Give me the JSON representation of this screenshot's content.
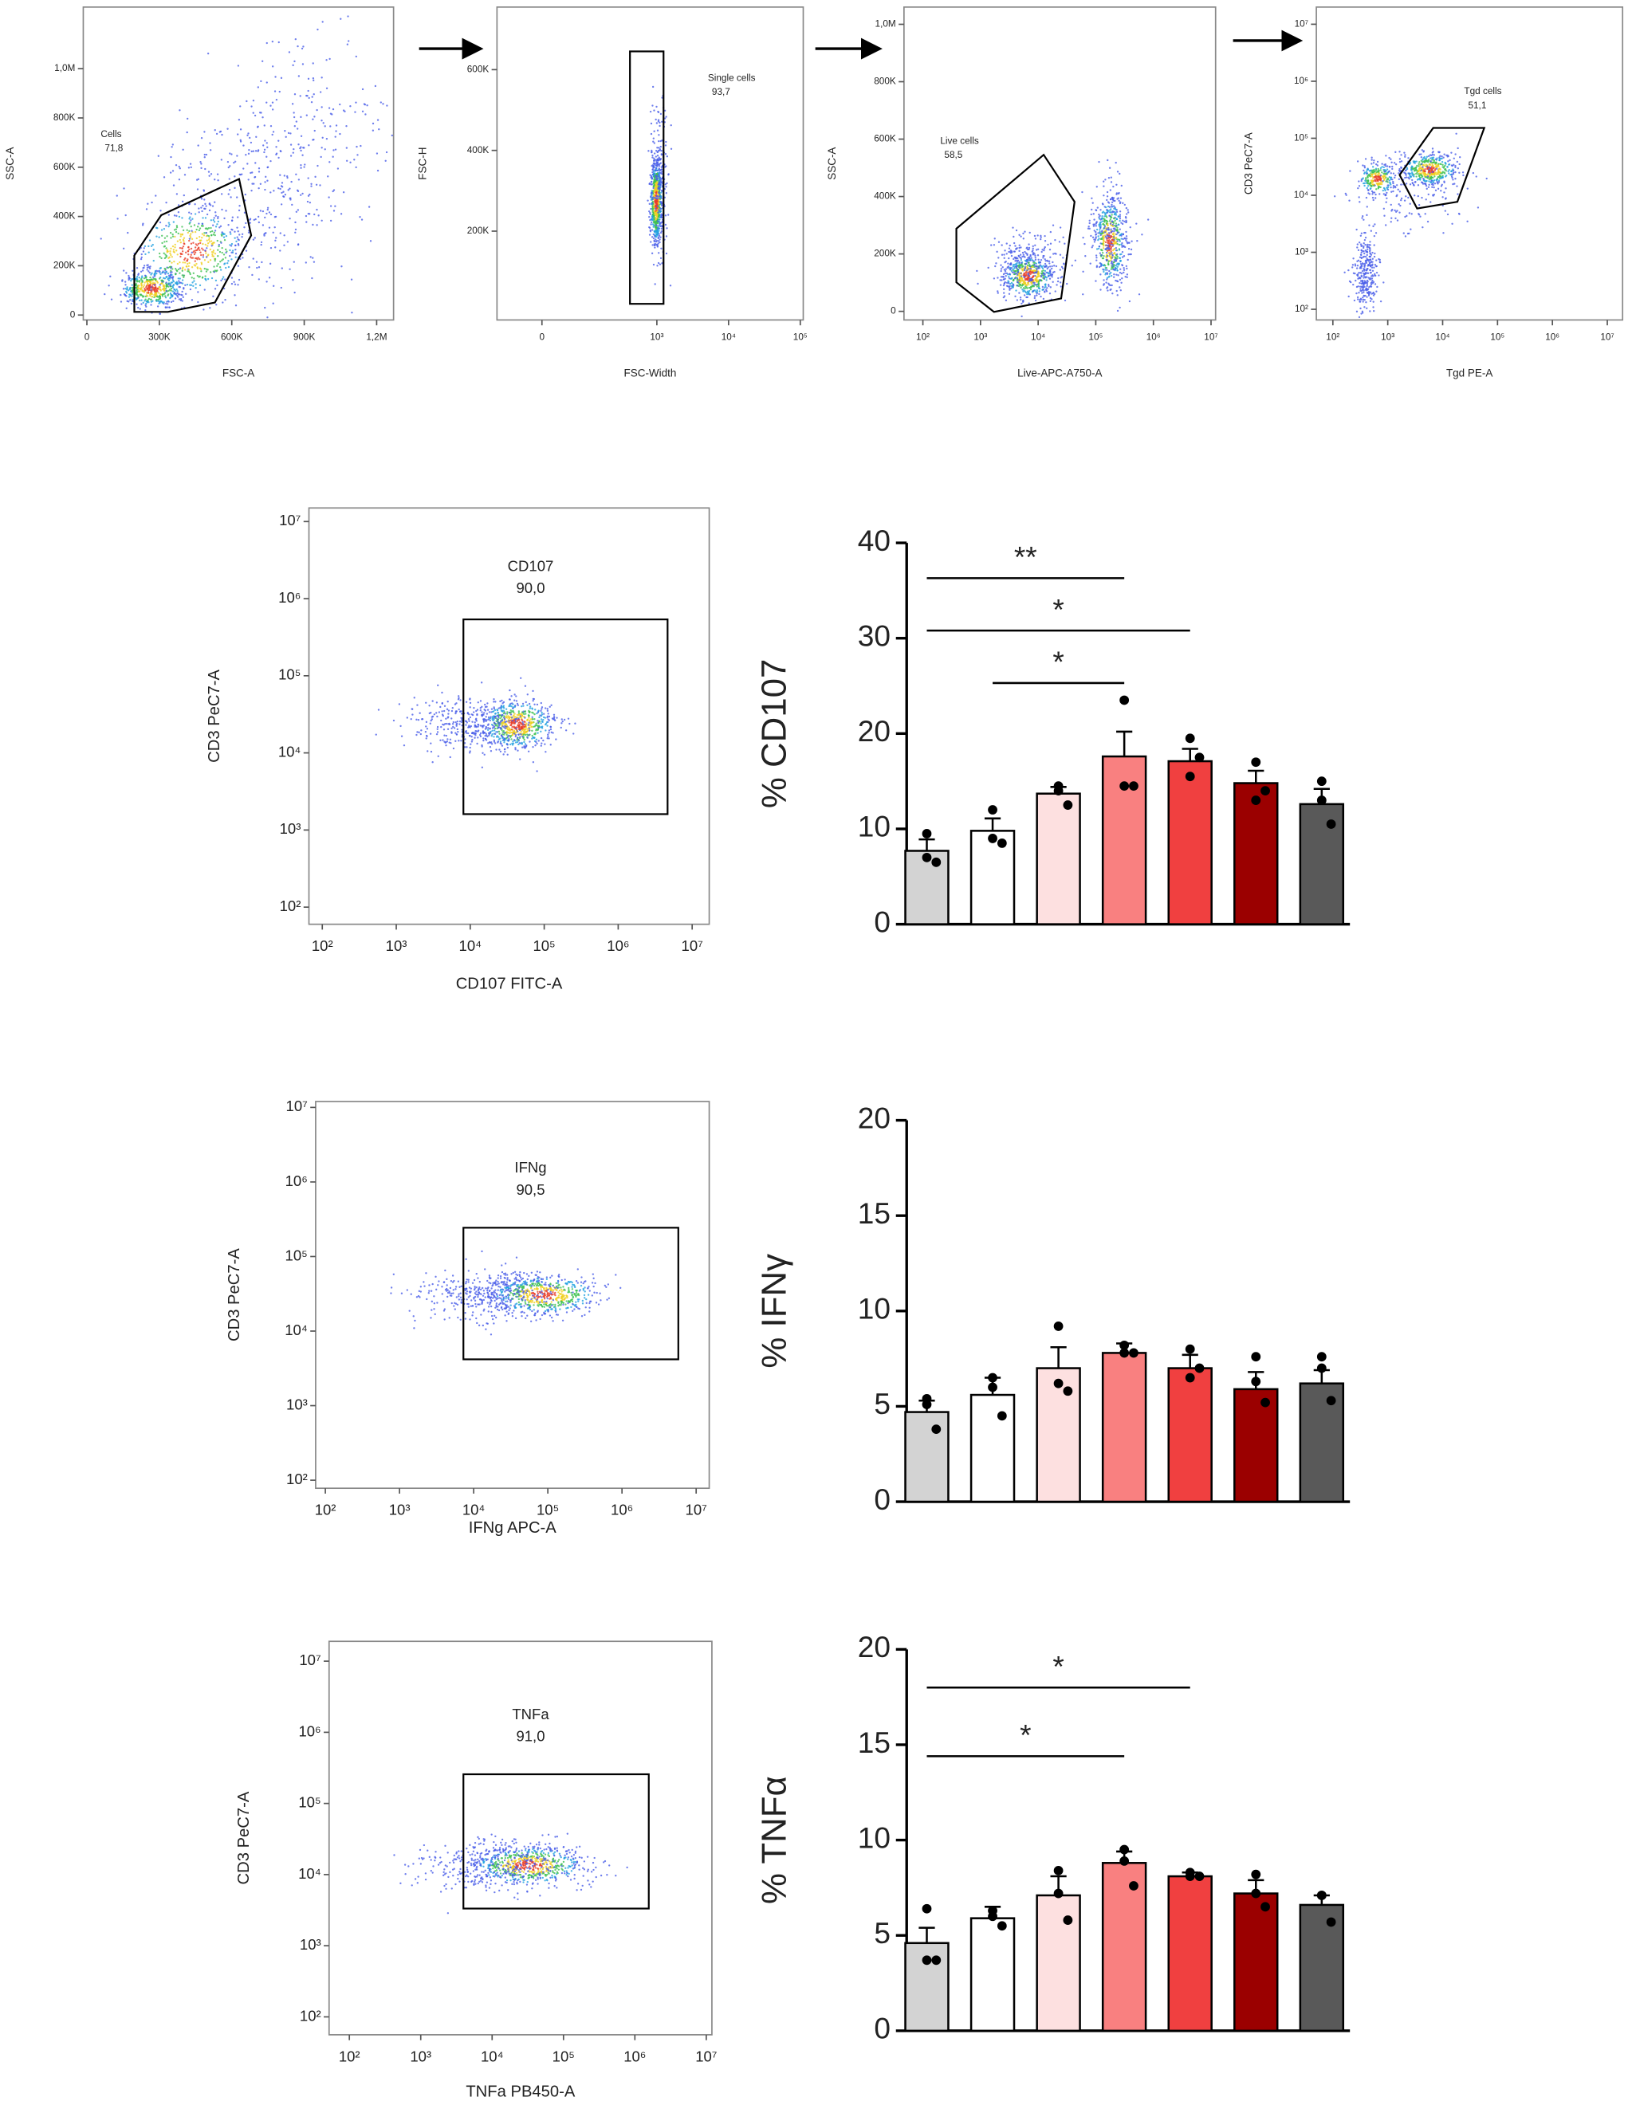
{
  "flow_plots": [
    {
      "x_label": "FSC-A",
      "y_label": "SSC-A",
      "gate_label": "Cells",
      "gate_value": "71,8",
      "xscale": "linear",
      "yscale": "linear",
      "xlim": [
        -15000,
        1270000
      ],
      "ylim": [
        -20000,
        1250000
      ],
      "xticks": [
        0,
        {
          "value": 300000,
          "label": "300K"
        },
        {
          "value": 600000,
          "label": "600K"
        },
        {
          "value": 900000,
          "label": "900K"
        },
        {
          "value": 1200000,
          "label": "1,2M"
        }
      ],
      "yticks": [
        0,
        {
          "value": 200000,
          "label": "200K"
        },
        {
          "value": 400000,
          "label": "400K"
        },
        {
          "value": 600000,
          "label": "600K"
        },
        {
          "value": 800000,
          "label": "800K"
        },
        {
          "value": 1000000,
          "label": "1,0M"
        }
      ]
    },
    {
      "x_label": "FSC-Width",
      "y_label": "FSC-H",
      "gate_label": "Single cells",
      "gate_value": "93,7",
      "xscale": "biex",
      "yscale": "linear",
      "xlim": [
        -100,
        110000
      ],
      "ylim": [
        -20000,
        755000
      ],
      "xticks": [
        0,
        {
          "value": 1000,
          "label": "10³"
        },
        {
          "value": 10000,
          "label": "10⁴"
        },
        {
          "value": 100000,
          "label": "10⁵"
        }
      ],
      "yticks": [
        {
          "value": 200000,
          "label": "200K"
        },
        {
          "value": 400000,
          "label": "400K"
        },
        {
          "value": 600000,
          "label": "600K"
        }
      ]
    },
    {
      "x_label": "Live-APC-A750-A",
      "y_label": "SSC-A",
      "gate_label": "Live cells",
      "gate_value": "58,5",
      "xscale": "log",
      "yscale": "linear",
      "xlim": [
        47,
        12000000
      ],
      "ylim": [
        -30000,
        1060000
      ],
      "xticks": [
        {
          "value": 100,
          "label": "10²"
        },
        {
          "value": 1000,
          "label": "10³"
        },
        {
          "value": 10000,
          "label": "10⁴"
        },
        {
          "value": 100000,
          "label": "10⁵"
        },
        {
          "value": 1000000,
          "label": "10⁶"
        },
        {
          "value": 10000000,
          "label": "10⁷"
        }
      ],
      "yticks": [
        0,
        {
          "value": 200000,
          "label": "200K"
        },
        {
          "value": 400000,
          "label": "400K"
        },
        {
          "value": 600000,
          "label": "600K"
        },
        {
          "value": 800000,
          "label": "800K"
        },
        {
          "value": 1000000,
          "label": "1,0M"
        }
      ]
    },
    {
      "x_label": "Tgd PE-A",
      "y_label": "CD3 PeC7-A",
      "gate_label": "Tgd cells",
      "gate_value": "51,1",
      "xscale": "log",
      "yscale": "log",
      "xlim": [
        50,
        19000000
      ],
      "ylim": [
        65,
        20000000
      ],
      "xticks": [
        {
          "value": 100,
          "label": "10²"
        },
        {
          "value": 1000,
          "label": "10³"
        },
        {
          "value": 10000,
          "label": "10⁴"
        },
        {
          "value": 100000,
          "label": "10⁵"
        },
        {
          "value": 1000000,
          "label": "10⁶"
        },
        {
          "value": 10000000,
          "label": "10⁷"
        }
      ],
      "yticks": [
        {
          "value": 100,
          "label": "10²"
        },
        {
          "value": 1000,
          "label": "10³"
        },
        {
          "value": 10000,
          "label": "10⁴"
        },
        {
          "value": 100000,
          "label": "10⁵"
        },
        {
          "value": 1000000,
          "label": "10⁶"
        },
        {
          "value": 10000000,
          "label": "10⁷"
        }
      ]
    },
    {
      "x_label": "CD107 FITC-A",
      "y_label": "CD3 PeC7-A",
      "gate_label": "CD107",
      "gate_value": "90,0",
      "xscale": "log",
      "yscale": "log",
      "xlim": [
        66,
        17000000
      ],
      "ylim": [
        60,
        15000000
      ],
      "xticks": [
        {
          "value": 100,
          "label": "10²"
        },
        {
          "value": 1000,
          "label": "10³"
        },
        {
          "value": 10000,
          "label": "10⁴"
        },
        {
          "value": 100000,
          "label": "10⁵"
        },
        {
          "value": 1000000,
          "label": "10⁶"
        },
        {
          "value": 10000000,
          "label": "10⁷"
        }
      ],
      "yticks": [
        {
          "value": 100,
          "label": "10²"
        },
        {
          "value": 1000,
          "label": "10³"
        },
        {
          "value": 10000,
          "label": "10⁴"
        },
        {
          "value": 100000,
          "label": "10⁵"
        },
        {
          "value": 1000000,
          "label": "10⁶"
        },
        {
          "value": 10000000,
          "label": "10⁷"
        }
      ]
    },
    {
      "x_label": "IFNg APC-A",
      "y_label": "CD3 PeC7-A",
      "gate_label": "IFNg",
      "gate_value": "90,5",
      "xscale": "log",
      "yscale": "log",
      "xlim": [
        74,
        15000000
      ],
      "ylim": [
        78,
        12000000
      ],
      "xticks": [
        {
          "value": 100,
          "label": "10²"
        },
        {
          "value": 1000,
          "label": "10³"
        },
        {
          "value": 10000,
          "label": "10⁴"
        },
        {
          "value": 100000,
          "label": "10⁵"
        },
        {
          "value": 1000000,
          "label": "10⁶"
        },
        {
          "value": 10000000,
          "label": "10⁷"
        }
      ],
      "yticks": [
        {
          "value": 100,
          "label": "10²"
        },
        {
          "value": 1000,
          "label": "10³"
        },
        {
          "value": 10000,
          "label": "10⁴"
        },
        {
          "value": 100000,
          "label": "10⁵"
        },
        {
          "value": 1000000,
          "label": "10⁶"
        },
        {
          "value": 10000000,
          "label": "10⁷"
        }
      ]
    },
    {
      "x_label": "TNFa PB450-A",
      "y_label": "CD3 PeC7-A",
      "gate_label": "TNFa",
      "gate_value": "91,0",
      "xscale": "log",
      "yscale": "log",
      "xlim": [
        52,
        12000000
      ],
      "ylim": [
        56,
        19000000
      ],
      "xticks": [
        {
          "value": 100,
          "label": "10²"
        },
        {
          "value": 1000,
          "label": "10³"
        },
        {
          "value": 10000,
          "label": "10⁴"
        },
        {
          "value": 100000,
          "label": "10⁵"
        },
        {
          "value": 1000000,
          "label": "10⁶"
        },
        {
          "value": 10000000,
          "label": "10⁷"
        }
      ],
      "yticks": [
        {
          "value": 100,
          "label": "10²"
        },
        {
          "value": 1000,
          "label": "10³"
        },
        {
          "value": 10000,
          "label": "10⁴"
        },
        {
          "value": 100000,
          "label": "10⁵"
        },
        {
          "value": 1000000,
          "label": "10⁶"
        },
        {
          "value": 10000000,
          "label": "10⁷"
        }
      ]
    }
  ],
  "chart_data": [
    {
      "type": "bar",
      "y_label": "% CD107",
      "ylim": [
        0,
        40
      ],
      "yticks": [
        0,
        10,
        20,
        30,
        40
      ],
      "colors": [
        "#d3d3d3",
        "#ffffff",
        "#fde0e0",
        "#f98080",
        "#f04040",
        "#9b0000",
        "#595959"
      ],
      "values": [
        7.7,
        9.8,
        13.7,
        17.6,
        17.1,
        14.8,
        12.6
      ],
      "errors": [
        1.2,
        1.3,
        0.7,
        2.6,
        1.3,
        1.3,
        1.6
      ],
      "points": [
        [
          9.5,
          7,
          6.5
        ],
        [
          12,
          9,
          8.5
        ],
        [
          14.5,
          14,
          12.5
        ],
        [
          23.5,
          14.5,
          14.5
        ],
        [
          19.5,
          15.5,
          17.5
        ],
        [
          17,
          13,
          14
        ],
        [
          15,
          13,
          10.5
        ]
      ],
      "annotations": [
        {
          "label": "**",
          "from": 0,
          "to": 3,
          "y": 36.3
        },
        {
          "label": "*",
          "from": 0,
          "to": 4,
          "y": 30.8
        },
        {
          "label": "*",
          "from": 1,
          "to": 3,
          "y": 25.3
        }
      ]
    },
    {
      "type": "bar",
      "y_label": "% IFNγ",
      "ylim": [
        0,
        20
      ],
      "yticks": [
        0,
        5,
        10,
        15,
        20
      ],
      "colors": [
        "#d3d3d3",
        "#ffffff",
        "#fde0e0",
        "#f98080",
        "#f04040",
        "#9b0000",
        "#595959"
      ],
      "values": [
        4.7,
        5.6,
        7.0,
        7.8,
        7.0,
        5.9,
        6.2
      ],
      "errors": [
        0.6,
        0.9,
        1.1,
        0.5,
        0.7,
        0.9,
        0.7
      ],
      "points": [
        [
          5.4,
          5.1,
          3.8
        ],
        [
          6.5,
          6,
          4.5
        ],
        [
          9.2,
          6.2,
          5.8
        ],
        [
          8.2,
          7.8,
          7.8
        ],
        [
          8,
          6.5,
          7
        ],
        [
          7.6,
          6.3,
          5.2
        ],
        [
          7.6,
          7,
          5.3
        ]
      ],
      "annotations": []
    },
    {
      "type": "bar",
      "y_label": "% TNFα",
      "ylim": [
        0,
        20
      ],
      "yticks": [
        0,
        5,
        10,
        15,
        20
      ],
      "colors": [
        "#d3d3d3",
        "#ffffff",
        "#fde0e0",
        "#f98080",
        "#f04040",
        "#9b0000",
        "#595959"
      ],
      "values": [
        4.6,
        5.9,
        7.1,
        8.8,
        8.1,
        7.2,
        6.6
      ],
      "errors": [
        0.8,
        0.6,
        1.0,
        0.6,
        0.2,
        0.7,
        0.5
      ],
      "points": [
        [
          6.4,
          3.7,
          3.7
        ],
        [
          6.3,
          6,
          5.5
        ],
        [
          8.4,
          7.2,
          5.8
        ],
        [
          9.5,
          8.9,
          7.6
        ],
        [
          8.3,
          8.1,
          8.1
        ],
        [
          8.2,
          7.2,
          6.5
        ],
        [
          7.1,
          7.1,
          5.7
        ]
      ],
      "annotations": [
        {
          "label": "*",
          "from": 0,
          "to": 4,
          "y": 18.0
        },
        {
          "label": "*",
          "from": 0,
          "to": 3,
          "y": 14.4
        }
      ]
    }
  ]
}
